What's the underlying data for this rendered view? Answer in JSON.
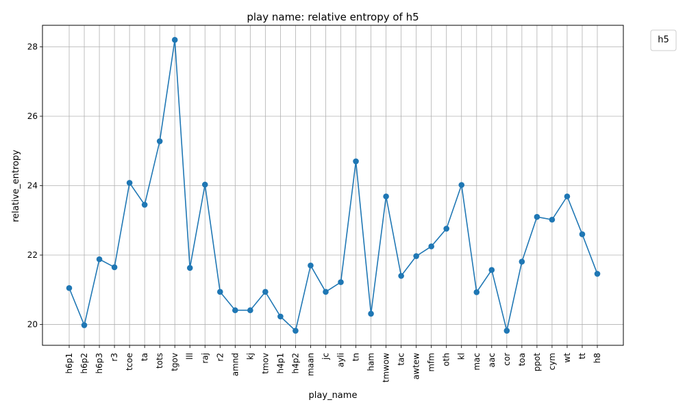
{
  "chart_data": {
    "type": "line",
    "title": "play name: relative entropy of h5",
    "xlabel": "play_name",
    "ylabel": "relative_entropy",
    "categories": [
      "h6p1",
      "h6p2",
      "h6p3",
      "r3",
      "tcoe",
      "ta",
      "tots",
      "tgov",
      "lll",
      "raj",
      "r2",
      "amnd",
      "kj",
      "tmov",
      "h4p1",
      "h4p2",
      "maan",
      "jc",
      "ayli",
      "tn",
      "ham",
      "tmwow",
      "tac",
      "awtew",
      "mfm",
      "oth",
      "kl",
      "mac",
      "aac",
      "cor",
      "toa",
      "ppot",
      "cym",
      "wt",
      "tt",
      "h8"
    ],
    "series": [
      {
        "name": "",
        "values": [
          21.05,
          19.98,
          21.88,
          21.65,
          24.08,
          23.45,
          25.28,
          28.2,
          21.63,
          24.03,
          20.94,
          20.41,
          20.41,
          20.94,
          20.23,
          19.82,
          21.7,
          20.94,
          21.22,
          24.7,
          20.31,
          23.69,
          21.4,
          21.97,
          22.25,
          22.76,
          24.02,
          20.93,
          21.57,
          19.82,
          21.81,
          23.1,
          23.02,
          23.69,
          22.6,
          21.46
        ]
      }
    ],
    "yticks": [
      20,
      22,
      24,
      26,
      28
    ],
    "ylim": [
      19.4,
      28.62
    ],
    "grid": true,
    "legend": {
      "title": "h5",
      "placement": "outside-top-right"
    },
    "colors": {
      "line": "#1f77b4",
      "grid": "#b0b0b0",
      "axis": "#000000"
    }
  }
}
